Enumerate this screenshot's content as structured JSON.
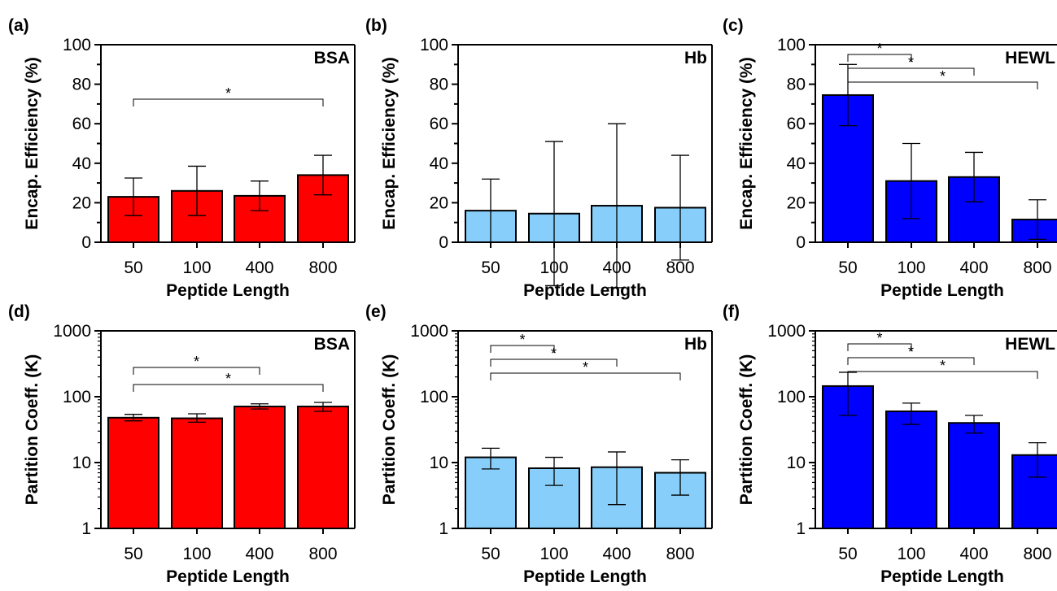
{
  "chart_data": [
    {
      "type": "bar",
      "panel": "(a)",
      "protein": "BSA",
      "categories": [
        "50",
        "100",
        "400",
        "800"
      ],
      "values": [
        23,
        26,
        23.5,
        34
      ],
      "errors": [
        9.5,
        12.5,
        7.5,
        10
      ],
      "color": "#ff0000",
      "xlabel": "Peptide Length",
      "ylabel": "Encap. Efficiency (%)",
      "yscale": "linear",
      "ylim": [
        0,
        100
      ],
      "yticks": [
        "0",
        "20",
        "40",
        "60",
        "80",
        "100"
      ],
      "significance": [
        {
          "from": "50",
          "to": "800",
          "label": "*"
        }
      ]
    },
    {
      "type": "bar",
      "panel": "(b)",
      "protein": "Hb",
      "categories": [
        "50",
        "100",
        "400",
        "800"
      ],
      "values": [
        16,
        14.5,
        18.5,
        17.5
      ],
      "errors": [
        16,
        36.5,
        41.5,
        26.5
      ],
      "color": "#87cefa",
      "xlabel": "Peptide Length",
      "ylabel": "Encap. Efficiency (%)",
      "yscale": "linear",
      "ylim": [
        0,
        100
      ],
      "yticks": [
        "0",
        "20",
        "40",
        "60",
        "80",
        "100"
      ],
      "significance": []
    },
    {
      "type": "bar",
      "panel": "(c)",
      "protein": "HEWL",
      "categories": [
        "50",
        "100",
        "400",
        "800"
      ],
      "values": [
        74.5,
        31,
        33,
        11.5
      ],
      "errors": [
        15.5,
        19,
        12.5,
        10
      ],
      "color": "#0000ff",
      "xlabel": "Peptide Length",
      "ylabel": "Encap. Efficiency (%)",
      "yscale": "linear",
      "ylim": [
        0,
        100
      ],
      "yticks": [
        "0",
        "20",
        "40",
        "60",
        "80",
        "100"
      ],
      "significance": [
        {
          "from": "50",
          "to": "100",
          "label": "*"
        },
        {
          "from": "50",
          "to": "400",
          "label": "*"
        },
        {
          "from": "50",
          "to": "800",
          "label": "*"
        }
      ]
    },
    {
      "type": "bar",
      "panel": "(d)",
      "protein": "BSA",
      "categories": [
        "50",
        "100",
        "400",
        "800"
      ],
      "values": [
        48,
        47,
        71,
        71
      ],
      "err_low": [
        43,
        41,
        65,
        60
      ],
      "err_high": [
        54,
        55,
        78,
        82
      ],
      "color": "#ff0000",
      "xlabel": "Peptide Length",
      "ylabel": "Partition Coeff. (K)",
      "yscale": "log",
      "ylim": [
        1,
        1000
      ],
      "yticks": [
        "1",
        "10",
        "100",
        "1000"
      ],
      "significance": [
        {
          "from": "50",
          "to": "400",
          "label": "*"
        },
        {
          "from": "50",
          "to": "800",
          "label": "*"
        }
      ]
    },
    {
      "type": "bar",
      "panel": "(e)",
      "protein": "Hb",
      "categories": [
        "50",
        "100",
        "400",
        "800"
      ],
      "values": [
        12,
        8.2,
        8.5,
        7
      ],
      "err_low": [
        8,
        4.5,
        2.3,
        3.2
      ],
      "err_high": [
        16.5,
        12,
        14.5,
        11
      ],
      "color": "#87cefa",
      "xlabel": "Peptide Length",
      "ylabel": "Partition Coeff. (K)",
      "yscale": "log",
      "ylim": [
        1,
        1000
      ],
      "yticks": [
        "1",
        "10",
        "100",
        "1000"
      ],
      "significance": [
        {
          "from": "50",
          "to": "100",
          "label": "*"
        },
        {
          "from": "50",
          "to": "400",
          "label": "*"
        },
        {
          "from": "50",
          "to": "800",
          "label": "*"
        }
      ]
    },
    {
      "type": "bar",
      "panel": "(f)",
      "protein": "HEWL",
      "categories": [
        "50",
        "100",
        "400",
        "800"
      ],
      "values": [
        145,
        60,
        40,
        13
      ],
      "err_low": [
        52,
        38,
        28,
        6
      ],
      "err_high": [
        235,
        80,
        52,
        20
      ],
      "color": "#0000ff",
      "xlabel": "Peptide Length",
      "ylabel": "Partition Coeff. (K)",
      "yscale": "log",
      "ylim": [
        1,
        1000
      ],
      "yticks": [
        "1",
        "10",
        "100",
        "1000"
      ],
      "significance": [
        {
          "from": "50",
          "to": "100",
          "label": "*"
        },
        {
          "from": "50",
          "to": "400",
          "label": "*"
        },
        {
          "from": "50",
          "to": "800",
          "label": "*"
        }
      ]
    }
  ]
}
